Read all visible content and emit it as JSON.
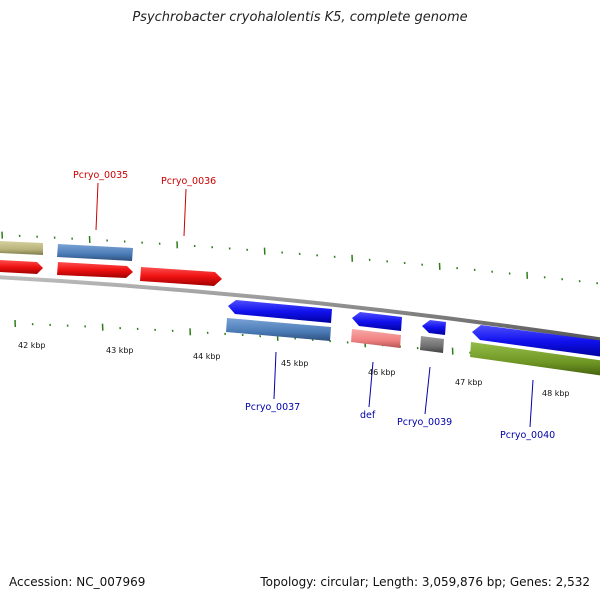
{
  "title": "Psychrobacter cryohalolentis K5, complete genome",
  "footer": {
    "accession": "Accession: NC_007969",
    "stats": "Topology: circular; Length: 3,059,876 bp; Genes: 2,532"
  },
  "scale_labels": [
    "42 kbp",
    "43 kbp",
    "44 kbp",
    "45 kbp",
    "46 kbp",
    "47 kbp",
    "48 kbp"
  ],
  "forward_gene_labels": [
    "Pcryo_0035",
    "Pcryo_0036"
  ],
  "reverse_gene_labels": [
    "Pcryo_0037",
    "def",
    "Pcryo_0039",
    "Pcryo_0040"
  ],
  "colors": {
    "forward_label": "#cc0000",
    "reverse_label": "#0000aa",
    "tick": "#2e7d1a",
    "backbone": "#8a8a8a",
    "forward_cds": "#ee1111",
    "reverse_cds": "#1111ee",
    "gene_blue": "#4a7ab5",
    "gene_khaki": "#b8b27a",
    "gene_pink": "#f08080",
    "gene_gray": "#707070",
    "gene_olive": "#6f9624"
  }
}
